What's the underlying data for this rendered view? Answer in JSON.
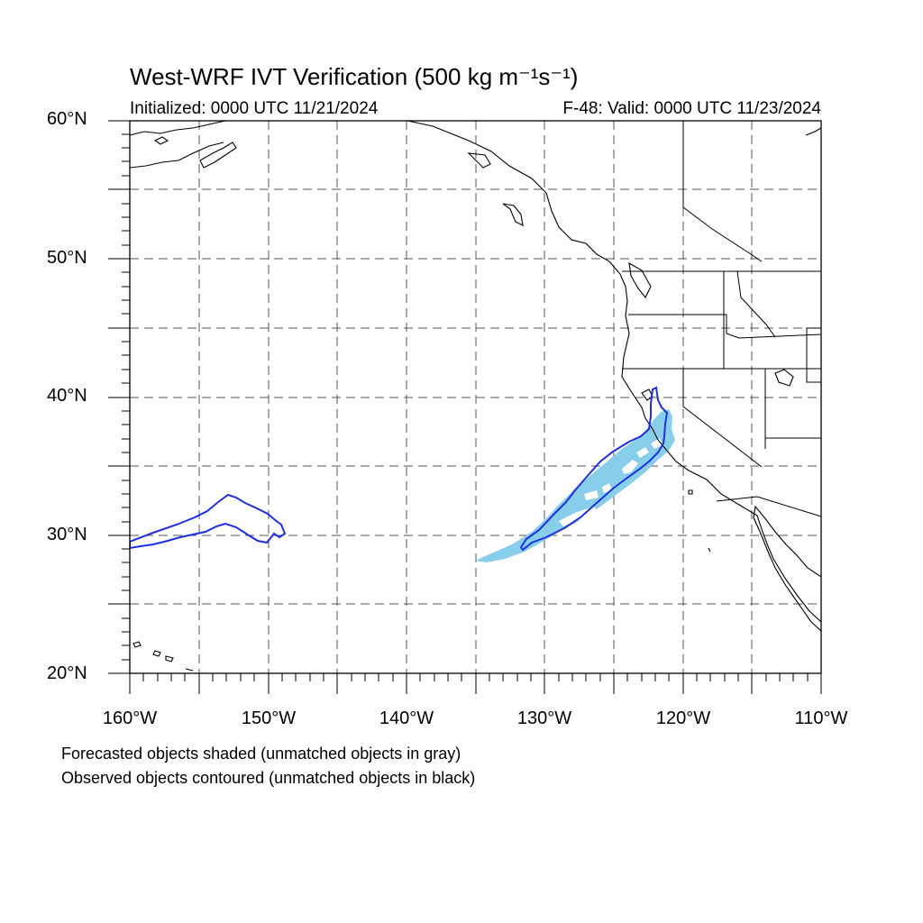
{
  "header": {
    "title": "West-WRF IVT Verification (500 kg m⁻¹s⁻¹)",
    "initialized": "Initialized: 0000 UTC 11/21/2024",
    "valid": "F-48: Valid: 0000 UTC 11/23/2024"
  },
  "axes": {
    "y_labels": [
      "60°N",
      "50°N",
      "40°N",
      "30°N",
      "20°N"
    ],
    "x_labels": [
      "160°W",
      "150°W",
      "140°W",
      "130°W",
      "120°W",
      "110°W"
    ]
  },
  "captions": {
    "line1": "Forecasted objects shaded (unmatched objects in gray)",
    "line2": "Observed objects contoured (unmatched objects in black)"
  },
  "colors": {
    "forecast_fill": "#87ceea",
    "observed_contour": "#1f2fe0",
    "coastline": "#000000",
    "grid": "#555555"
  }
}
